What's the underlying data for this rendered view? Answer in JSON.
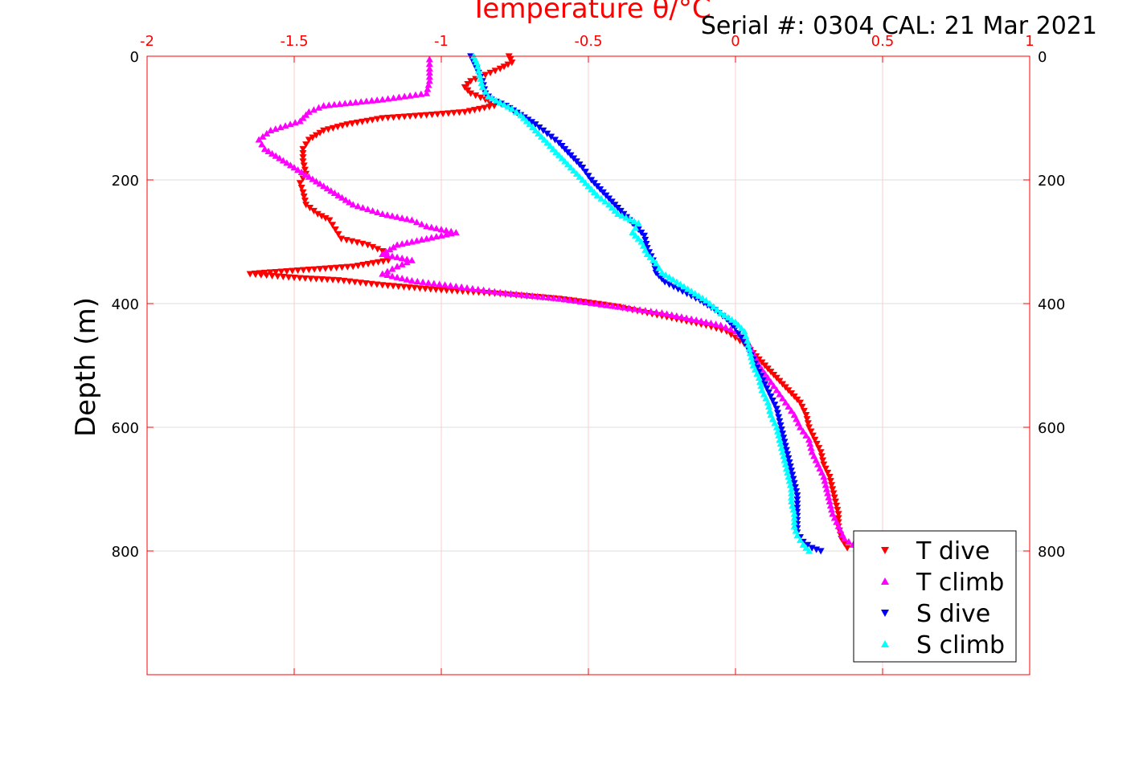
{
  "header": {
    "serial_label": "Serial #: 0304  CAL: 21 Mar 2021"
  },
  "chart_data": {
    "type": "scatter",
    "title": "",
    "xlabel": "Temperature θ/°C",
    "ylabel": "Depth (m)",
    "xlim": [
      -2,
      1
    ],
    "ylim": [
      0,
      1000
    ],
    "y_reversed": true,
    "x_ticks": [
      "-2",
      "-1.5",
      "-1",
      "-0.5",
      "0",
      "0.5",
      "1"
    ],
    "y_ticks": [
      "0",
      "200",
      "400",
      "600",
      "800"
    ],
    "grid": true,
    "legend_position": "bottom-right",
    "colors": {
      "axes_box": "#ff0000",
      "x_grid": "#ffcccc",
      "y_grid": "#dddddd",
      "text": "#000000",
      "x_axis_text": "#ff0000"
    },
    "series": [
      {
        "name": "T dive",
        "marker": "triangle-down",
        "color": "#ff0000",
        "points": [
          [
            -0.77,
            0
          ],
          [
            -0.76,
            10
          ],
          [
            -0.8,
            20
          ],
          [
            -0.85,
            30
          ],
          [
            -0.9,
            40
          ],
          [
            -0.92,
            50
          ],
          [
            -0.9,
            60
          ],
          [
            -0.85,
            70
          ],
          [
            -0.82,
            80
          ],
          [
            -0.92,
            90
          ],
          [
            -1.05,
            95
          ],
          [
            -1.2,
            100
          ],
          [
            -1.32,
            110
          ],
          [
            -1.4,
            120
          ],
          [
            -1.45,
            135
          ],
          [
            -1.47,
            150
          ],
          [
            -1.47,
            170
          ],
          [
            -1.46,
            190
          ],
          [
            -1.48,
            205
          ],
          [
            -1.47,
            220
          ],
          [
            -1.46,
            240
          ],
          [
            -1.42,
            255
          ],
          [
            -1.38,
            265
          ],
          [
            -1.36,
            280
          ],
          [
            -1.34,
            295
          ],
          [
            -1.25,
            305
          ],
          [
            -1.2,
            315
          ],
          [
            -1.18,
            330
          ],
          [
            -1.3,
            340
          ],
          [
            -1.45,
            345
          ],
          [
            -1.6,
            350
          ],
          [
            -1.65,
            352
          ],
          [
            -1.5,
            358
          ],
          [
            -1.35,
            362
          ],
          [
            -1.2,
            370
          ],
          [
            -1.0,
            378
          ],
          [
            -0.8,
            384
          ],
          [
            -0.6,
            392
          ],
          [
            -0.5,
            398
          ],
          [
            -0.4,
            405
          ],
          [
            -0.3,
            415
          ],
          [
            -0.2,
            425
          ],
          [
            -0.1,
            435
          ],
          [
            -0.03,
            445
          ],
          [
            0.0,
            455
          ],
          [
            0.03,
            465
          ],
          [
            0.06,
            480
          ],
          [
            0.1,
            500
          ],
          [
            0.14,
            520
          ],
          [
            0.18,
            540
          ],
          [
            0.22,
            560
          ],
          [
            0.24,
            580
          ],
          [
            0.25,
            600
          ],
          [
            0.27,
            620
          ],
          [
            0.29,
            640
          ],
          [
            0.3,
            660
          ],
          [
            0.32,
            680
          ],
          [
            0.33,
            700
          ],
          [
            0.34,
            720
          ],
          [
            0.35,
            740
          ],
          [
            0.35,
            760
          ],
          [
            0.36,
            780
          ],
          [
            0.38,
            795
          ]
        ]
      },
      {
        "name": "T climb",
        "marker": "triangle-up",
        "color": "#ff00ff",
        "points": [
          [
            0.4,
            790
          ],
          [
            0.37,
            780
          ],
          [
            0.35,
            760
          ],
          [
            0.33,
            740
          ],
          [
            0.32,
            720
          ],
          [
            0.31,
            700
          ],
          [
            0.3,
            680
          ],
          [
            0.28,
            660
          ],
          [
            0.26,
            640
          ],
          [
            0.25,
            620
          ],
          [
            0.22,
            600
          ],
          [
            0.2,
            580
          ],
          [
            0.17,
            560
          ],
          [
            0.14,
            540
          ],
          [
            0.11,
            520
          ],
          [
            0.08,
            500
          ],
          [
            0.06,
            480
          ],
          [
            0.04,
            460
          ],
          [
            0.0,
            445
          ],
          [
            -0.05,
            435
          ],
          [
            -0.15,
            425
          ],
          [
            -0.25,
            415
          ],
          [
            -0.4,
            405
          ],
          [
            -0.6,
            392
          ],
          [
            -0.8,
            382
          ],
          [
            -0.95,
            372
          ],
          [
            -1.1,
            363
          ],
          [
            -1.2,
            352
          ],
          [
            -1.15,
            340
          ],
          [
            -1.1,
            330
          ],
          [
            -1.2,
            320
          ],
          [
            -1.15,
            305
          ],
          [
            -1.05,
            295
          ],
          [
            -0.95,
            285
          ],
          [
            -1.05,
            275
          ],
          [
            -1.1,
            265
          ],
          [
            -1.2,
            255
          ],
          [
            -1.3,
            240
          ],
          [
            -1.35,
            225
          ],
          [
            -1.4,
            210
          ],
          [
            -1.45,
            195
          ],
          [
            -1.5,
            180
          ],
          [
            -1.55,
            165
          ],
          [
            -1.6,
            150
          ],
          [
            -1.62,
            135
          ],
          [
            -1.58,
            120
          ],
          [
            -1.48,
            105
          ],
          [
            -1.45,
            90
          ],
          [
            -1.4,
            80
          ],
          [
            -1.2,
            70
          ],
          [
            -1.05,
            60
          ],
          [
            -1.04,
            40
          ],
          [
            -1.04,
            20
          ],
          [
            -1.04,
            5
          ]
        ]
      },
      {
        "name": "S dive",
        "marker": "triangle-down",
        "color": "#0000ff",
        "points": [
          [
            -0.9,
            0
          ],
          [
            -0.88,
            20
          ],
          [
            -0.86,
            40
          ],
          [
            -0.85,
            60
          ],
          [
            -0.83,
            70
          ],
          [
            -0.78,
            80
          ],
          [
            -0.73,
            95
          ],
          [
            -0.68,
            110
          ],
          [
            -0.64,
            125
          ],
          [
            -0.6,
            140
          ],
          [
            -0.56,
            160
          ],
          [
            -0.52,
            180
          ],
          [
            -0.49,
            200
          ],
          [
            -0.46,
            215
          ],
          [
            -0.43,
            230
          ],
          [
            -0.4,
            245
          ],
          [
            -0.37,
            260
          ],
          [
            -0.34,
            275
          ],
          [
            -0.31,
            290
          ],
          [
            -0.3,
            310
          ],
          [
            -0.28,
            330
          ],
          [
            -0.27,
            350
          ],
          [
            -0.24,
            365
          ],
          [
            -0.18,
            380
          ],
          [
            -0.12,
            395
          ],
          [
            -0.07,
            410
          ],
          [
            -0.03,
            425
          ],
          [
            0.0,
            440
          ],
          [
            0.02,
            455
          ],
          [
            0.04,
            470
          ],
          [
            0.06,
            490
          ],
          [
            0.08,
            510
          ],
          [
            0.1,
            530
          ],
          [
            0.12,
            550
          ],
          [
            0.14,
            570
          ],
          [
            0.15,
            590
          ],
          [
            0.16,
            610
          ],
          [
            0.17,
            630
          ],
          [
            0.18,
            650
          ],
          [
            0.19,
            670
          ],
          [
            0.2,
            690
          ],
          [
            0.21,
            710
          ],
          [
            0.21,
            730
          ],
          [
            0.21,
            750
          ],
          [
            0.21,
            770
          ],
          [
            0.23,
            785
          ],
          [
            0.26,
            795
          ],
          [
            0.29,
            800
          ]
        ]
      },
      {
        "name": "S climb",
        "marker": "triangle-up",
        "color": "#00ffff",
        "points": [
          [
            0.25,
            800
          ],
          [
            0.23,
            790
          ],
          [
            0.21,
            775
          ],
          [
            0.2,
            760
          ],
          [
            0.2,
            740
          ],
          [
            0.19,
            720
          ],
          [
            0.19,
            700
          ],
          [
            0.18,
            680
          ],
          [
            0.17,
            660
          ],
          [
            0.16,
            640
          ],
          [
            0.15,
            620
          ],
          [
            0.14,
            600
          ],
          [
            0.12,
            580
          ],
          [
            0.11,
            560
          ],
          [
            0.09,
            540
          ],
          [
            0.08,
            520
          ],
          [
            0.06,
            500
          ],
          [
            0.05,
            480
          ],
          [
            0.04,
            460
          ],
          [
            0.03,
            445
          ],
          [
            0.0,
            430
          ],
          [
            -0.05,
            415
          ],
          [
            -0.1,
            395
          ],
          [
            -0.15,
            380
          ],
          [
            -0.2,
            365
          ],
          [
            -0.25,
            350
          ],
          [
            -0.27,
            335
          ],
          [
            -0.3,
            320
          ],
          [
            -0.32,
            300
          ],
          [
            -0.35,
            285
          ],
          [
            -0.33,
            270
          ],
          [
            -0.4,
            255
          ],
          [
            -0.43,
            240
          ],
          [
            -0.47,
            225
          ],
          [
            -0.5,
            210
          ],
          [
            -0.53,
            195
          ],
          [
            -0.56,
            180
          ],
          [
            -0.6,
            160
          ],
          [
            -0.64,
            140
          ],
          [
            -0.67,
            125
          ],
          [
            -0.7,
            110
          ],
          [
            -0.73,
            95
          ],
          [
            -0.76,
            85
          ],
          [
            -0.8,
            75
          ],
          [
            -0.84,
            65
          ],
          [
            -0.86,
            50
          ],
          [
            -0.87,
            30
          ],
          [
            -0.88,
            10
          ],
          [
            -0.89,
            0
          ]
        ]
      }
    ]
  }
}
